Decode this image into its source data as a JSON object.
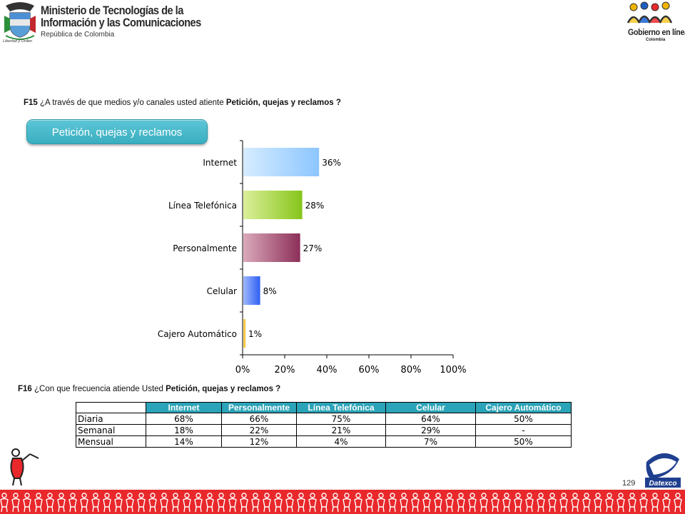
{
  "header": {
    "ministry_line1": "Ministerio de Tecnologías de la",
    "ministry_line2": "Información y las Comunicaciones",
    "ministry_sub": "República de Colombia",
    "shield_caption": "Libertad y Orden",
    "gel_line1": "Gobierno en línea",
    "gel_line2": "Colombia"
  },
  "question_f15": {
    "code": "F15",
    "text": " ¿A través de que medios y/o canales usted atiente ",
    "topic": "Petición, quejas y reclamos ?"
  },
  "pill_label": "Petición, quejas y reclamos",
  "chart_data": {
    "type": "bar",
    "orientation": "horizontal",
    "categories": [
      "Internet",
      "Línea Telefónica",
      "Personalmente",
      "Celular",
      "Cajero Automático"
    ],
    "values": [
      36,
      28,
      27,
      8,
      1
    ],
    "value_labels": [
      "36%",
      "28%",
      "27%",
      "8%",
      "1%"
    ],
    "xlim": [
      0,
      100
    ],
    "x_ticks": [
      "0%",
      "20%",
      "40%",
      "60%",
      "80%",
      "100%"
    ],
    "x_tick_values": [
      0,
      20,
      40,
      60,
      80,
      100
    ],
    "grid": false,
    "colors": [
      [
        "#d6ecff",
        "#8cc6ff"
      ],
      [
        "#dcef9a",
        "#86c51a"
      ],
      [
        "#dbaabb",
        "#8c2f58"
      ],
      [
        "#9fb8ff",
        "#2e5ff0"
      ],
      [
        "#ffe48a",
        "#f0b400"
      ]
    ]
  },
  "question_f16": {
    "code": "F16",
    "text": " ¿Con que frecuencia atiende Usted  ",
    "topic": "Petición, quejas y reclamos ?"
  },
  "table": {
    "headers": [
      "Internet",
      "Personalmente",
      "Línea Telefónica",
      "Celular",
      "Cajero Automático"
    ],
    "rows": [
      {
        "label": "Diaria",
        "cells": [
          "68%",
          "66%",
          "75%",
          "64%",
          "50%"
        ]
      },
      {
        "label": "Semanal",
        "cells": [
          "18%",
          "22%",
          "21%",
          "29%",
          "-"
        ]
      },
      {
        "label": "Mensual",
        "cells": [
          "14%",
          "12%",
          "4%",
          "7%",
          "50%"
        ]
      }
    ],
    "header_color": "#2ba3b8"
  },
  "footer": {
    "page_number": "129",
    "brand_color": "#e8282b",
    "datexco_label": "Datexco"
  }
}
